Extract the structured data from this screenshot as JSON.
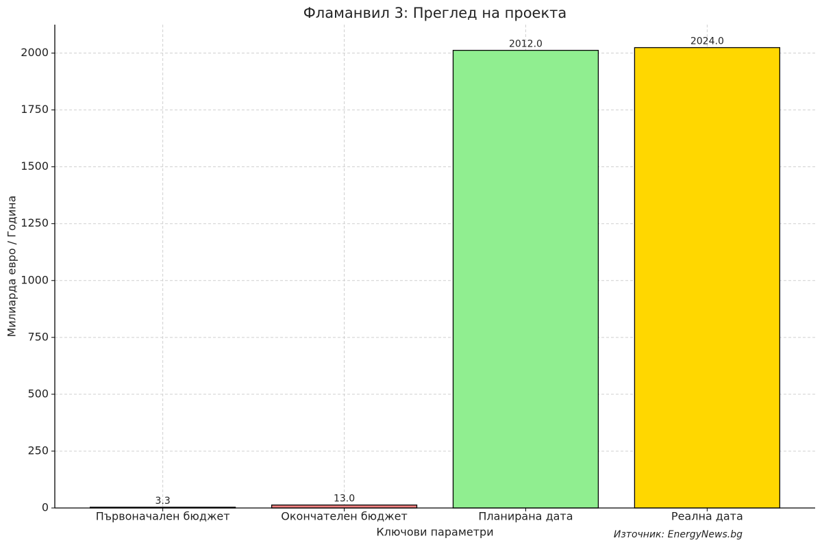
{
  "chart_data": {
    "type": "bar",
    "title": "Фламанвил 3: Преглед на проекта",
    "x_label": "Ключови параметри",
    "y_label": "Милиарда евро / Година",
    "source": "Източник: EnergyNews.bg",
    "categories": [
      "Първоначален бюджет",
      "Окончателен бюджет",
      "Планирана дата",
      "Реална дата"
    ],
    "values": [
      3.3,
      13.0,
      2012,
      2024
    ],
    "value_labels": [
      "3.3",
      "13.0",
      "2012.0",
      "2024.0"
    ],
    "colors": [
      "#87ceeb",
      "#f08080",
      "#90ee90",
      "#ffd700"
    ],
    "ylim": [
      0,
      2125
    ],
    "yticks": [
      0,
      250,
      500,
      750,
      1000,
      1250,
      1500,
      1750,
      2000
    ],
    "grid": true
  }
}
